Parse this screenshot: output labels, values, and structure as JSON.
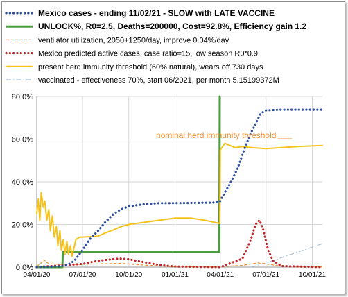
{
  "chart_data": {
    "type": "line",
    "title": "",
    "xlabel": "",
    "ylabel": "",
    "grid": true,
    "legend_placement": "top",
    "x_ticks": [
      "04/01/20",
      "07/01/20",
      "10/01/20",
      "01/01/21",
      "04/01/21",
      "07/01/21",
      "10/01/21"
    ],
    "y_ticks": [
      "0.0%",
      "20.0%",
      "40.0%",
      "60.0%",
      "80.0%"
    ],
    "ylim": [
      0,
      80
    ],
    "xlim": [
      "2020-04-01",
      "2021-10-21"
    ],
    "annotation": "nominal herd immunity threshold",
    "series": [
      {
        "name": "Mexico cases - ending 11/02/21 - SLOW with LATE VACCINE",
        "color": "#2e4f9e",
        "style": "dotted-thick",
        "points": [
          [
            "2020-04-01",
            0
          ],
          [
            "2020-05-15",
            0.3
          ],
          [
            "2020-06-01",
            1
          ],
          [
            "2020-06-15",
            3
          ],
          [
            "2020-07-01",
            8
          ],
          [
            "2020-07-15",
            13
          ],
          [
            "2020-08-01",
            17
          ],
          [
            "2020-08-15",
            21
          ],
          [
            "2020-09-01",
            25
          ],
          [
            "2020-09-15",
            27
          ],
          [
            "2020-10-01",
            28.5
          ],
          [
            "2020-11-01",
            29.5
          ],
          [
            "2020-12-01",
            30
          ],
          [
            "2021-01-01",
            30
          ],
          [
            "2021-03-15",
            30.2
          ],
          [
            "2021-03-31",
            30.5
          ],
          [
            "2021-04-05",
            33
          ],
          [
            "2021-04-20",
            39
          ],
          [
            "2021-05-05",
            46
          ],
          [
            "2021-05-20",
            56
          ],
          [
            "2021-06-01",
            63
          ],
          [
            "2021-06-10",
            67
          ],
          [
            "2021-06-20",
            72
          ],
          [
            "2021-07-01",
            73.5
          ],
          [
            "2021-08-01",
            73.8
          ],
          [
            "2021-09-01",
            73.8
          ],
          [
            "2021-10-21",
            73.8
          ]
        ]
      },
      {
        "name": "UNLOCK%, R0=2.5,  Deaths=200000, Cost=92.8%, Efficiency gain 1.2",
        "color": "#4a9e3e",
        "style": "solid-thick",
        "points": [
          [
            "2020-04-01",
            0
          ],
          [
            "2020-05-22",
            0
          ],
          [
            "2020-05-23",
            7
          ],
          [
            "2020-06-20",
            7
          ],
          [
            "2020-06-21",
            7.2
          ],
          [
            "2021-03-30",
            7.2
          ],
          [
            "2021-03-31",
            80
          ],
          [
            "2021-04-01",
            80
          ]
        ]
      },
      {
        "name": "ventilator utilization, 2050+1250/day, improve 0.04%/day",
        "color": "#e8923a",
        "style": "dashed-thin",
        "points": [
          [
            "2020-04-01",
            0.5
          ],
          [
            "2020-04-08",
            1.5
          ],
          [
            "2020-04-15",
            3.5
          ],
          [
            "2020-04-22",
            2
          ],
          [
            "2020-05-01",
            1.5
          ],
          [
            "2020-06-01",
            1.2
          ],
          [
            "2020-08-01",
            1.5
          ],
          [
            "2020-09-15",
            1.8
          ],
          [
            "2020-10-15",
            1.2
          ],
          [
            "2020-12-01",
            0.5
          ],
          [
            "2021-01-01",
            0.3
          ],
          [
            "2021-04-01",
            0.2
          ],
          [
            "2021-05-15",
            0.8
          ],
          [
            "2021-06-15",
            2
          ],
          [
            "2021-07-01",
            1.5
          ],
          [
            "2021-08-01",
            0.5
          ],
          [
            "2021-10-21",
            0.2
          ]
        ]
      },
      {
        "name": "Mexico predicted active cases, case ratio=15, low season R0*0.9",
        "color": "#c0272d",
        "style": "dotted-thick",
        "points": [
          [
            "2020-04-01",
            0
          ],
          [
            "2020-07-01",
            1.5
          ],
          [
            "2020-08-01",
            3
          ],
          [
            "2020-09-01",
            3.8
          ],
          [
            "2020-09-15",
            4
          ],
          [
            "2020-10-01",
            3.7
          ],
          [
            "2020-11-01",
            2.3
          ],
          [
            "2020-12-01",
            1
          ],
          [
            "2021-01-01",
            0.3
          ],
          [
            "2021-04-01",
            0
          ],
          [
            "2021-05-15",
            4
          ],
          [
            "2021-06-01",
            13
          ],
          [
            "2021-06-10",
            20
          ],
          [
            "2021-06-18",
            22
          ],
          [
            "2021-06-25",
            18
          ],
          [
            "2021-07-05",
            8
          ],
          [
            "2021-07-15",
            3
          ],
          [
            "2021-08-01",
            0.5
          ],
          [
            "2021-10-21",
            0
          ]
        ]
      },
      {
        "name": "present herd immunity threshold (60% natural), wears off 730 days",
        "color": "#f5c21b",
        "style": "solid-medium",
        "points": [
          [
            "2020-04-01",
            25
          ],
          [
            "2020-04-04",
            32
          ],
          [
            "2020-04-07",
            22
          ],
          [
            "2020-04-10",
            35
          ],
          [
            "2020-04-14",
            28
          ],
          [
            "2020-04-17",
            31
          ],
          [
            "2020-04-21",
            22
          ],
          [
            "2020-04-25",
            27
          ],
          [
            "2020-04-28",
            17
          ],
          [
            "2020-05-02",
            24
          ],
          [
            "2020-05-06",
            14
          ],
          [
            "2020-05-10",
            19
          ],
          [
            "2020-05-13",
            10
          ],
          [
            "2020-05-17",
            17
          ],
          [
            "2020-05-20",
            8
          ],
          [
            "2020-05-24",
            13
          ],
          [
            "2020-05-27",
            6
          ],
          [
            "2020-05-31",
            12
          ],
          [
            "2020-06-03",
            6
          ],
          [
            "2020-06-07",
            10
          ],
          [
            "2020-06-10",
            5
          ],
          [
            "2020-06-14",
            9
          ],
          [
            "2020-06-18",
            13
          ],
          [
            "2020-06-25",
            14
          ],
          [
            "2020-08-01",
            14.5
          ],
          [
            "2020-08-15",
            16
          ],
          [
            "2020-09-01",
            17.5
          ],
          [
            "2020-09-15",
            19
          ],
          [
            "2020-10-01",
            20
          ],
          [
            "2020-11-01",
            21
          ],
          [
            "2020-12-01",
            22
          ],
          [
            "2021-01-01",
            23
          ],
          [
            "2021-02-01",
            23
          ],
          [
            "2021-03-01",
            22
          ],
          [
            "2021-03-31",
            20.5
          ],
          [
            "2021-04-01",
            55
          ],
          [
            "2021-04-10",
            58
          ],
          [
            "2021-04-20",
            57
          ],
          [
            "2021-05-01",
            56
          ],
          [
            "2021-05-15",
            56.5
          ],
          [
            "2021-06-01",
            56
          ],
          [
            "2021-07-01",
            55.5
          ],
          [
            "2021-08-01",
            56
          ],
          [
            "2021-09-01",
            56.5
          ],
          [
            "2021-10-21",
            57
          ]
        ]
      },
      {
        "name": "vaccinated - effectiveness 70%, start 06/2021, per month 5.15199372M",
        "color": "#a9bfd6",
        "style": "dashdot-thin",
        "points": [
          [
            "2021-06-01",
            0
          ],
          [
            "2021-07-01",
            2
          ],
          [
            "2021-08-01",
            4.5
          ],
          [
            "2021-09-01",
            7
          ],
          [
            "2021-10-21",
            11
          ]
        ]
      }
    ]
  }
}
